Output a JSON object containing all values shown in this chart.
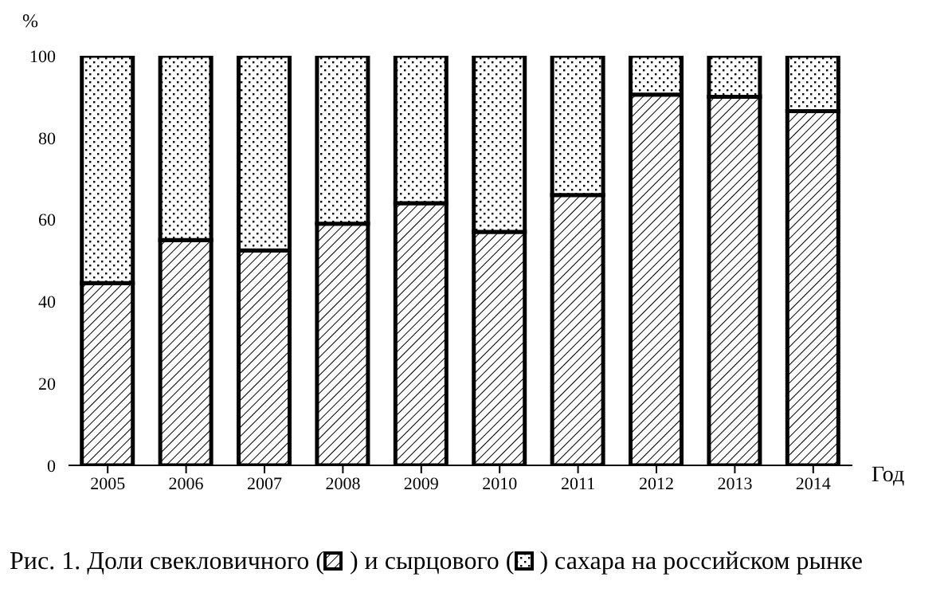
{
  "chart_data": {
    "type": "bar",
    "stacked": true,
    "xlabel": "Год",
    "ylabel": "%",
    "categories": [
      "2005",
      "2006",
      "2007",
      "2008",
      "2009",
      "2010",
      "2011",
      "2012",
      "2013",
      "2014"
    ],
    "series": [
      {
        "color": "#000000",
        "values": [
          44.5,
          55,
          52.5,
          59,
          64,
          57,
          66,
          90.5,
          90,
          86.5
        ]
      },
      {
        "color": "#000000",
        "values": [
          55.5,
          45,
          47.5,
          41,
          36,
          43,
          34,
          9.5,
          10,
          13.5
        ]
      }
    ],
    "ylim": [
      0,
      100
    ],
    "yticks": [
      0,
      20,
      40,
      60,
      80,
      100
    ],
    "annotations": [
      "Рис. 1. Доли свекловичного ( ) и сырцового ( ) сахара на российском рынке"
    ]
  }
}
